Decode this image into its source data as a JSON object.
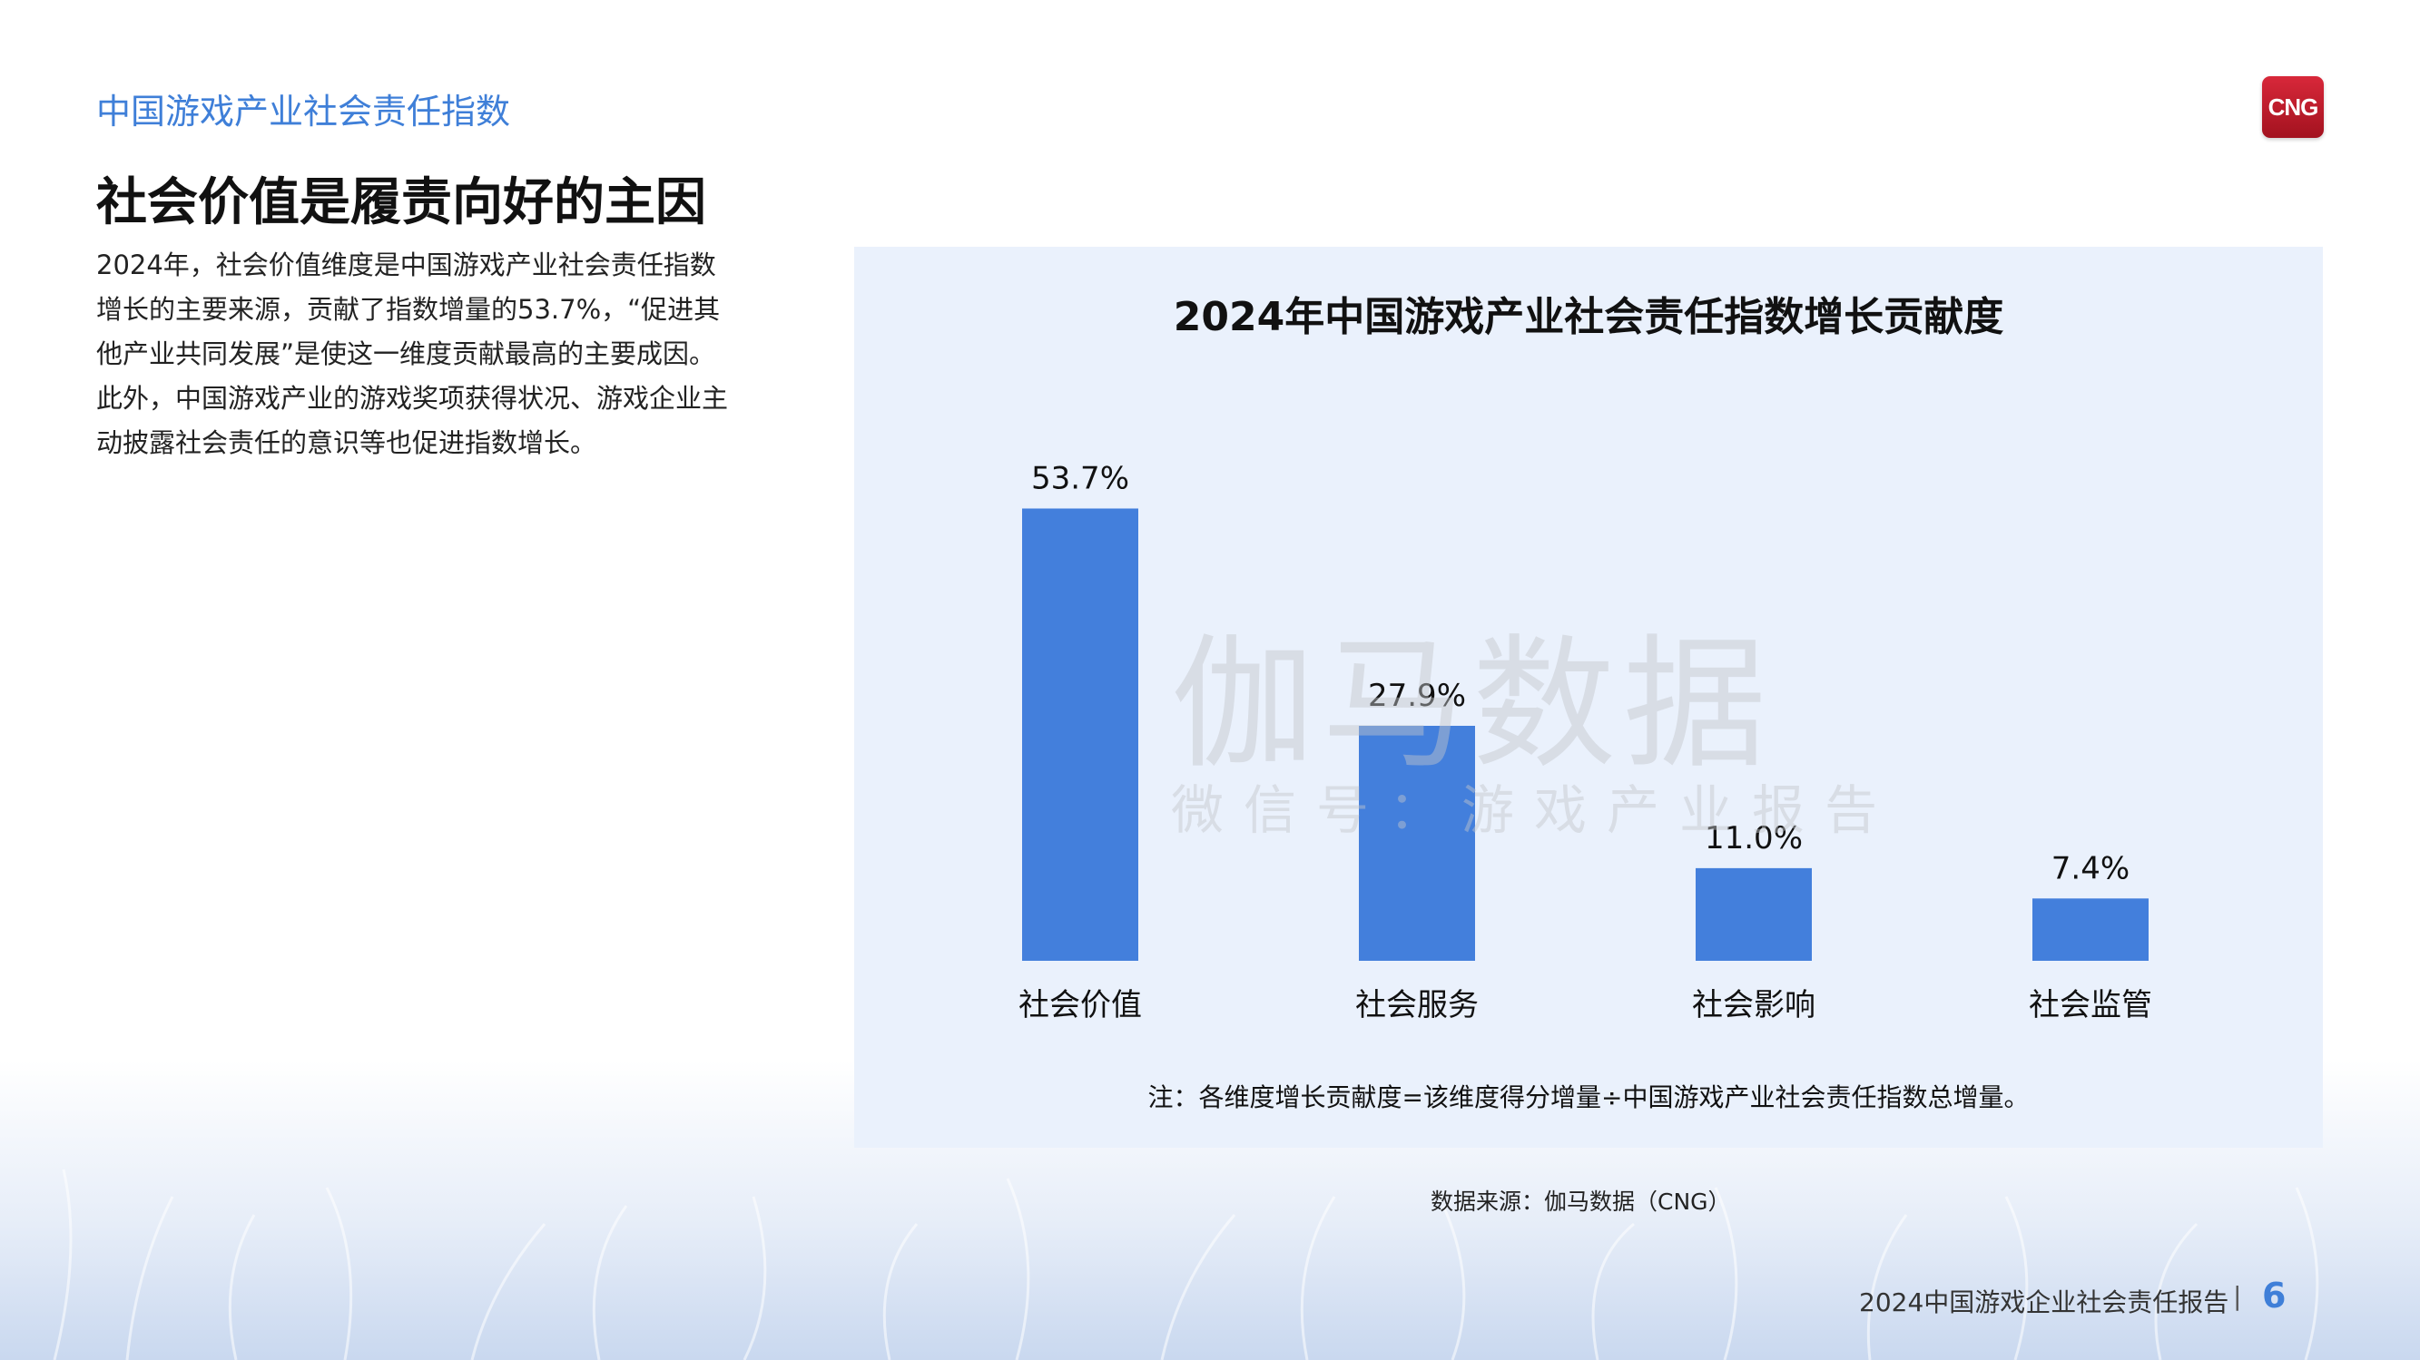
{
  "header": {
    "section_title": "中国游戏产业社会责任指数",
    "logo_text": "CNG"
  },
  "page_title": "社会价值是履责向好的主因",
  "description": "2024年，社会价值维度是中国游戏产业社会责任指数增长的主要来源，贡献了指数增量的53.7%，“促进其他产业共同发展”是使这一维度贡献最高的主要成因。此外，中国游戏产业的游戏奖项获得状况、游戏企业主动披露社会责任的意识等也促进指数增长。",
  "chart_data": {
    "type": "bar",
    "title": "2024年中国游戏产业社会责任指数增长贡献度",
    "categories": [
      "社会价值",
      "社会服务",
      "社会影响",
      "社会监管"
    ],
    "values": [
      53.7,
      27.9,
      11.0,
      7.4
    ],
    "value_labels": [
      "53.7%",
      "27.9%",
      "11.0%",
      "7.4%"
    ],
    "ylim": [
      0,
      60
    ],
    "grid": false,
    "bar_color": "#437fdc",
    "note": "注：各维度增长贡献度=该维度得分增量÷中国游戏产业社会责任指数总增量。"
  },
  "watermark": {
    "main": "伽马数据",
    "sub": "微信号：游戏产业报告"
  },
  "source": "数据来源：伽马数据（CNG）",
  "footer": {
    "report_title": "2024中国游戏企业社会责任报告",
    "separator": "|",
    "page_number": "6"
  },
  "colors": {
    "accent": "#3f7fd8",
    "panel_bg": "#eaf1fc",
    "logo_red": "#c41e2e"
  }
}
